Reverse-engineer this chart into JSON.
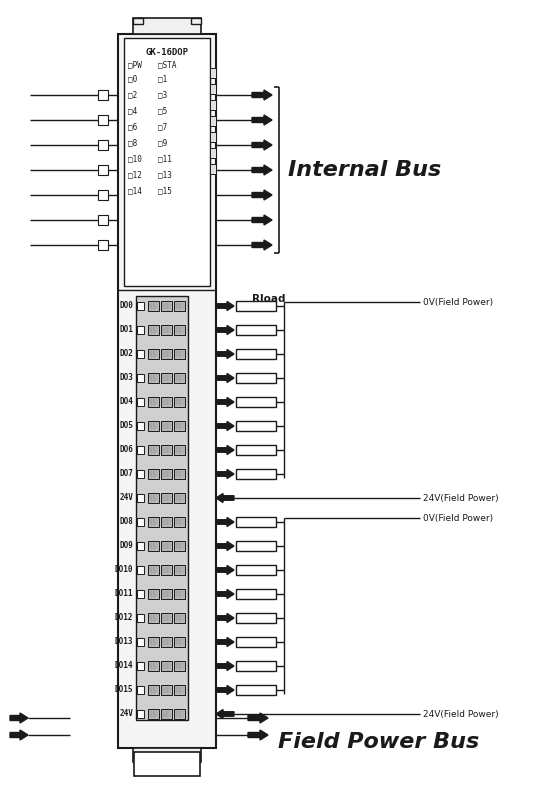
{
  "bg_color": "#ffffff",
  "line_color": "#1a1a1a",
  "title_internal_bus": "Internal Bus",
  "title_field_power_bus": "Field Power Bus",
  "module_label": "GK-16DOP",
  "pw_label": "PW",
  "sta_label": "STA",
  "channel_labels_left": [
    "0",
    "2",
    "4",
    "6",
    "8",
    "10",
    "12",
    "14"
  ],
  "channel_labels_right": [
    "1",
    "3",
    "5",
    "7",
    "9",
    "11",
    "13",
    "15"
  ],
  "do_labels": [
    "DO0",
    "DO1",
    "DO2",
    "DO3",
    "DO4",
    "DO5",
    "DO6",
    "DO7",
    "24V",
    "DO8",
    "DO9",
    "DO10",
    "DO11",
    "DO12",
    "DO13",
    "DO14",
    "DO15",
    "24V"
  ],
  "rload_label": "Rload",
  "label_0V_top": "0V(Field Power)",
  "label_24V_mid": "24V(Field Power)",
  "label_0V_mid": "0V(Field Power)",
  "label_24V_bot": "24V(Field Power)",
  "figsize": [
    5.46,
    8.02
  ],
  "dpi": 100,
  "internal_bus_fontsize": 16,
  "field_bus_fontsize": 16
}
